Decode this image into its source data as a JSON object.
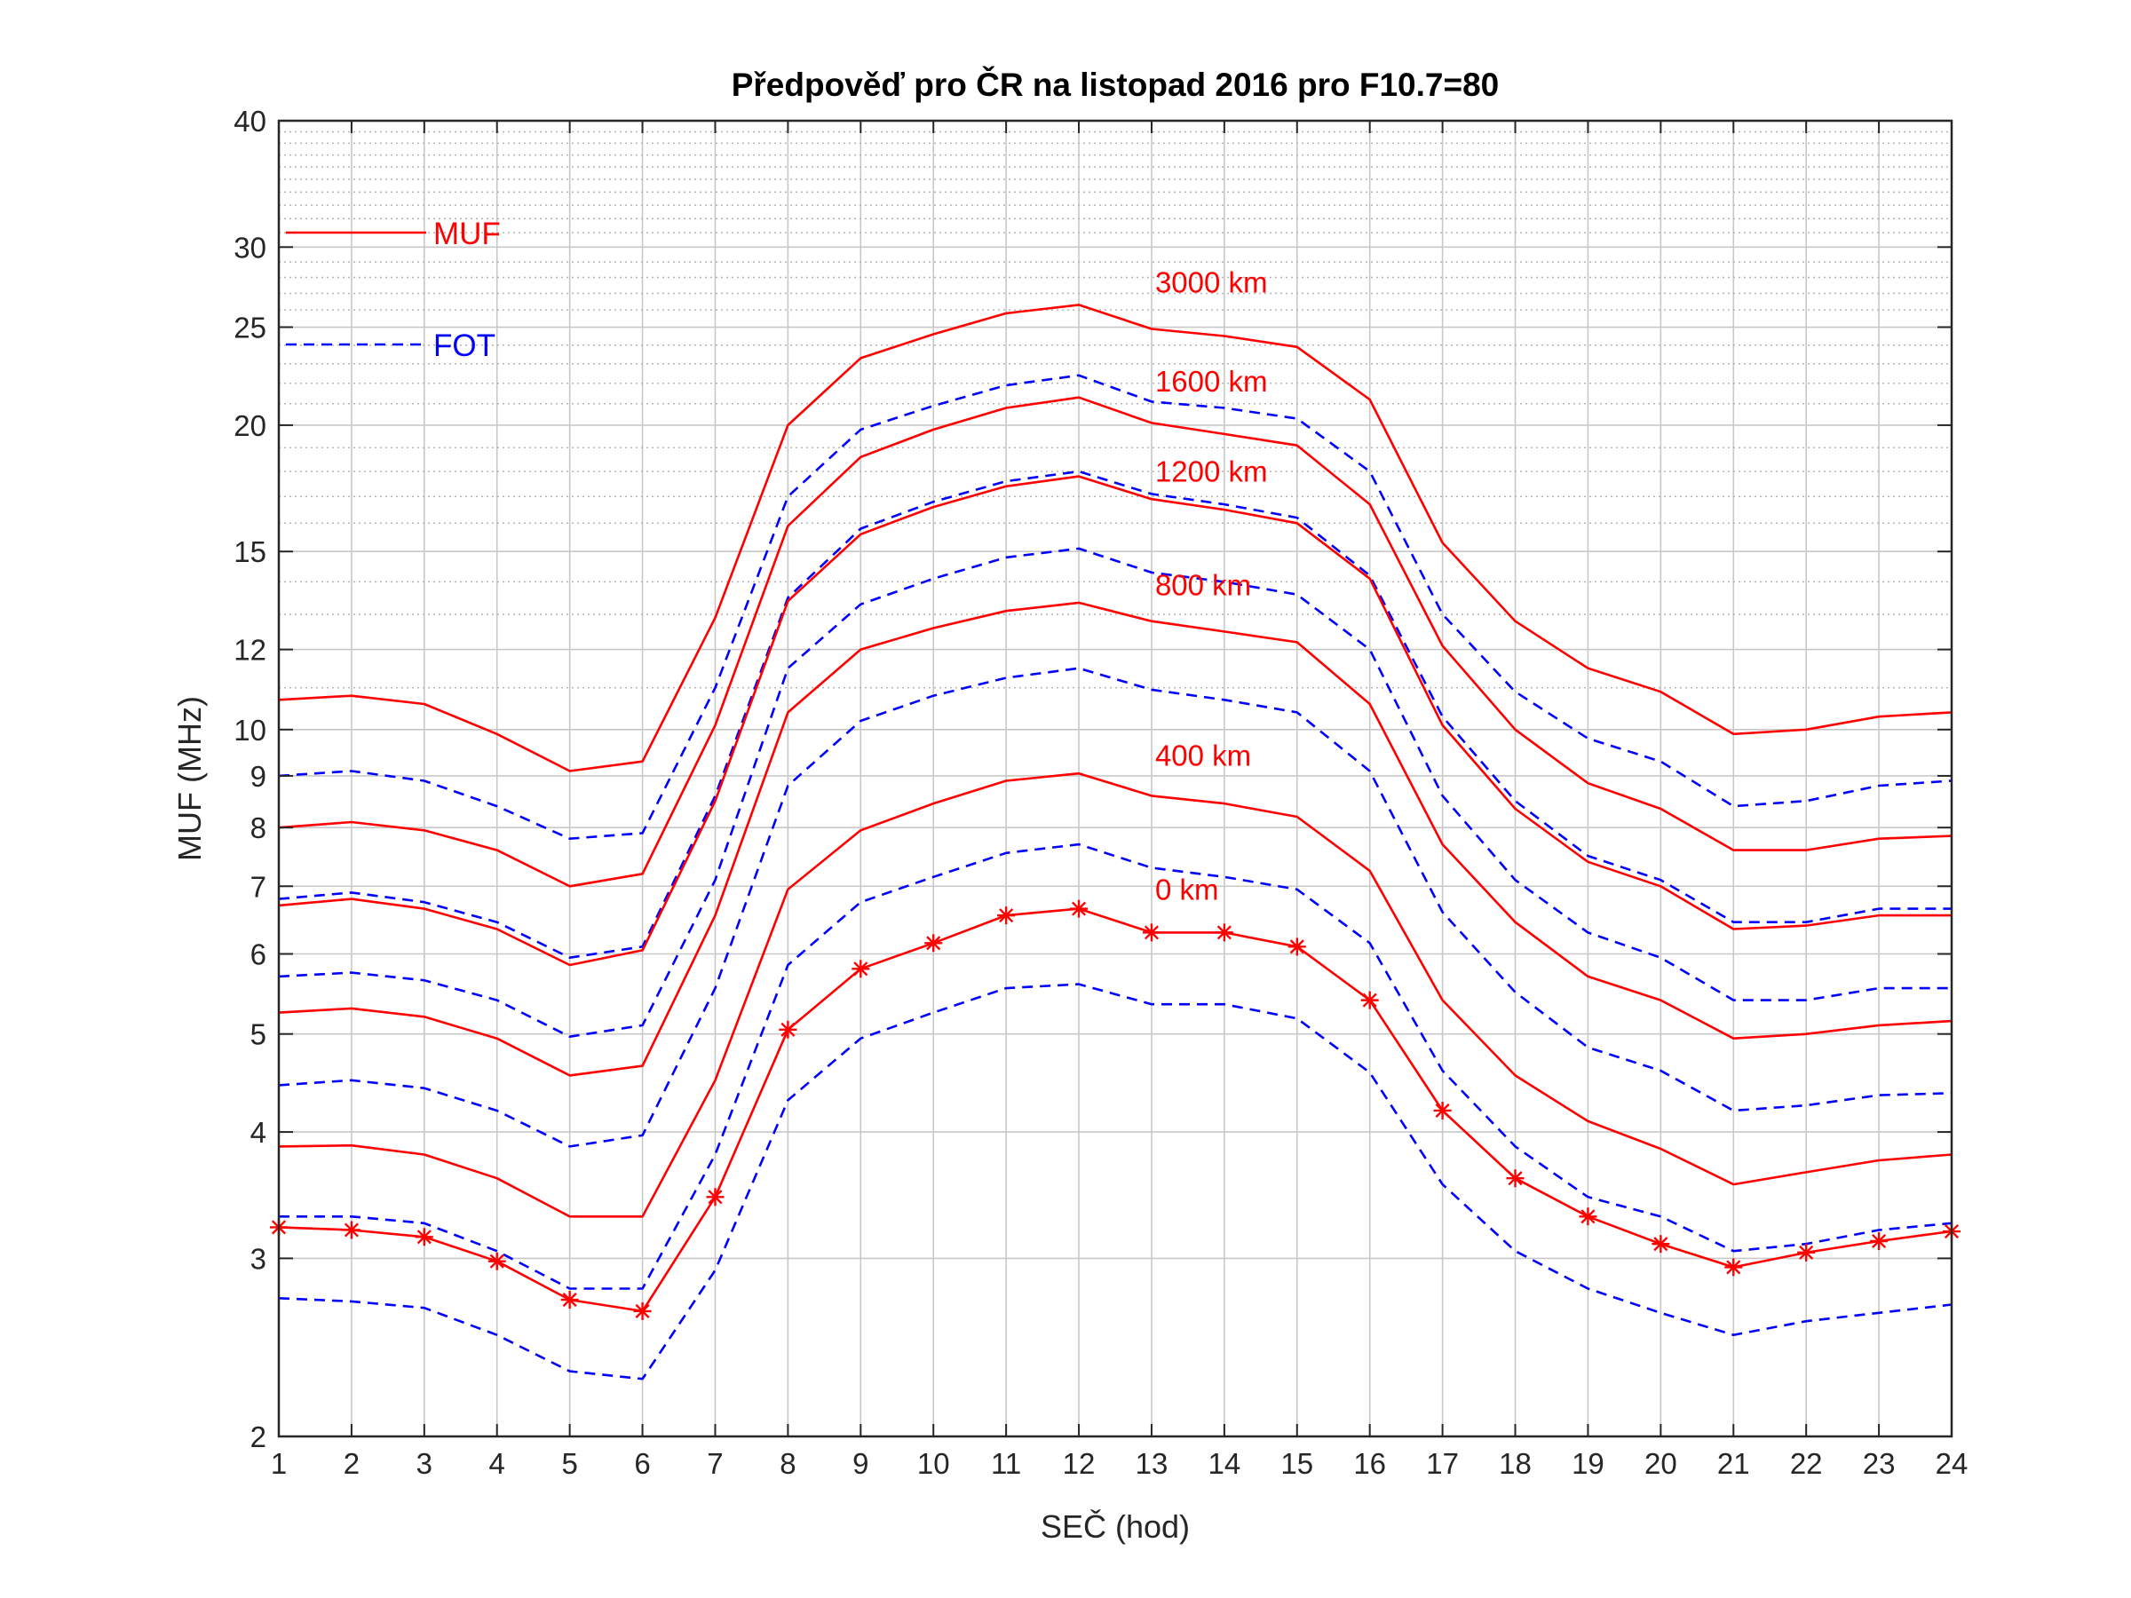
{
  "chart_data": {
    "type": "line",
    "title": "Předpověď pro ČR na listopad 2016 pro F10.7=80",
    "xlabel": "SEČ (hod)",
    "ylabel": "MUF (MHz)",
    "xlim": [
      1,
      24
    ],
    "ylim": [
      2,
      40
    ],
    "yscale": "log",
    "grid": true,
    "legend_position": "top-left",
    "x": [
      1,
      2,
      3,
      4,
      5,
      6,
      7,
      8,
      9,
      10,
      11,
      12,
      13,
      14,
      15,
      16,
      17,
      18,
      19,
      20,
      21,
      22,
      23,
      24
    ],
    "xticks": [
      "1",
      "2",
      "3",
      "4",
      "5",
      "6",
      "7",
      "8",
      "9",
      "10",
      "11",
      "12",
      "13",
      "14",
      "15",
      "16",
      "17",
      "18",
      "19",
      "20",
      "21",
      "22",
      "23",
      "24"
    ],
    "yticks": [
      {
        "value": 2,
        "label": "2"
      },
      {
        "value": 3,
        "label": "3"
      },
      {
        "value": 4,
        "label": "4"
      },
      {
        "value": 5,
        "label": "5"
      },
      {
        "value": 6,
        "label": "6"
      },
      {
        "value": 7,
        "label": "7"
      },
      {
        "value": 8,
        "label": "8"
      },
      {
        "value": 9,
        "label": "9"
      },
      {
        "value": 10,
        "label": "10"
      },
      {
        "value": 12,
        "label": "12"
      },
      {
        "value": 15,
        "label": "15"
      },
      {
        "value": 20,
        "label": "20"
      },
      {
        "value": 25,
        "label": "25"
      },
      {
        "value": 30,
        "label": "30"
      },
      {
        "value": 40,
        "label": "40"
      }
    ],
    "minor_grid": [
      11,
      13,
      14,
      16,
      17,
      18,
      19,
      21,
      22,
      23,
      24,
      26,
      27,
      28,
      29,
      31,
      32,
      33,
      34,
      35,
      36,
      37,
      38,
      39
    ],
    "legend": [
      {
        "label": "MUF",
        "color": "#ff0000",
        "dash": "solid"
      },
      {
        "label": "FOT",
        "color": "#0000ff",
        "dash": "dashed"
      }
    ],
    "colors": {
      "muf": "#ff0000",
      "fot": "#0000ff",
      "grid": "#c8c8c8",
      "axis": "#262626"
    },
    "series": [
      {
        "name": "3000 km",
        "label_x": 13,
        "label_y": 26.3,
        "kind": "MUF",
        "marker": "none",
        "values": [
          10.7,
          10.8,
          10.6,
          9.9,
          9.1,
          9.3,
          12.9,
          20.0,
          23.3,
          24.6,
          25.8,
          26.3,
          24.9,
          24.5,
          23.9,
          21.2,
          15.3,
          12.8,
          11.5,
          10.9,
          9.9,
          10.0,
          10.3,
          10.4
        ]
      },
      {
        "name": "",
        "kind": "FOT",
        "marker": "none",
        "values": [
          9.0,
          9.1,
          8.9,
          8.4,
          7.8,
          7.9,
          11.0,
          17.0,
          19.8,
          20.9,
          21.9,
          22.4,
          21.1,
          20.8,
          20.3,
          18.0,
          13.0,
          10.9,
          9.8,
          9.3,
          8.4,
          8.5,
          8.8,
          8.9
        ]
      },
      {
        "name": "1600 km",
        "label_x": 13,
        "label_y": 21.0,
        "kind": "MUF",
        "marker": "none",
        "values": [
          8.0,
          8.1,
          7.95,
          7.6,
          7.0,
          7.2,
          10.1,
          15.9,
          18.6,
          19.8,
          20.8,
          21.3,
          20.1,
          19.6,
          19.1,
          16.7,
          12.1,
          10.0,
          8.85,
          8.35,
          7.6,
          7.6,
          7.8,
          7.85
        ]
      },
      {
        "name": "",
        "kind": "FOT",
        "marker": "none",
        "values": [
          6.8,
          6.9,
          6.75,
          6.45,
          5.95,
          6.1,
          8.6,
          13.5,
          15.8,
          16.8,
          17.6,
          18.0,
          17.1,
          16.7,
          16.2,
          14.2,
          10.3,
          8.5,
          7.5,
          7.1,
          6.45,
          6.45,
          6.65,
          6.65
        ]
      },
      {
        "name": "1200 km",
        "label_x": 13,
        "label_y": 17.1,
        "kind": "MUF",
        "marker": "none",
        "values": [
          6.7,
          6.8,
          6.65,
          6.35,
          5.85,
          6.05,
          8.5,
          13.4,
          15.6,
          16.6,
          17.4,
          17.8,
          16.9,
          16.5,
          16.0,
          14.1,
          10.1,
          8.35,
          7.4,
          7.0,
          6.35,
          6.4,
          6.55,
          6.55
        ]
      },
      {
        "name": "",
        "kind": "FOT",
        "marker": "none",
        "values": [
          5.7,
          5.75,
          5.65,
          5.4,
          4.97,
          5.1,
          7.1,
          11.5,
          13.3,
          14.1,
          14.8,
          15.1,
          14.3,
          14.0,
          13.6,
          12.0,
          8.6,
          7.1,
          6.3,
          5.95,
          5.4,
          5.4,
          5.55,
          5.55
        ]
      },
      {
        "name": "800 km",
        "label_x": 13,
        "label_y": 13.2,
        "kind": "MUF",
        "marker": "none",
        "values": [
          5.25,
          5.3,
          5.2,
          4.95,
          4.55,
          4.65,
          6.55,
          10.4,
          12.0,
          12.6,
          13.1,
          13.35,
          12.8,
          12.5,
          12.2,
          10.6,
          7.7,
          6.45,
          5.7,
          5.4,
          4.95,
          5.0,
          5.1,
          5.15
        ]
      },
      {
        "name": "",
        "kind": "FOT",
        "marker": "none",
        "values": [
          4.45,
          4.5,
          4.42,
          4.2,
          3.87,
          3.97,
          5.55,
          8.8,
          10.2,
          10.8,
          11.25,
          11.5,
          10.95,
          10.7,
          10.4,
          9.1,
          6.6,
          5.5,
          4.85,
          4.6,
          4.2,
          4.25,
          4.35,
          4.37
        ]
      },
      {
        "name": "400 km",
        "label_x": 13,
        "label_y": 8.95,
        "kind": "MUF",
        "marker": "none",
        "values": [
          3.87,
          3.88,
          3.8,
          3.6,
          3.3,
          3.3,
          4.5,
          6.95,
          7.95,
          8.45,
          8.9,
          9.05,
          8.6,
          8.45,
          8.2,
          7.25,
          5.4,
          4.55,
          4.1,
          3.85,
          3.55,
          3.65,
          3.75,
          3.8
        ]
      },
      {
        "name": "",
        "kind": "FOT",
        "marker": "none",
        "values": [
          3.3,
          3.3,
          3.25,
          3.05,
          2.8,
          2.8,
          3.8,
          5.85,
          6.75,
          7.15,
          7.55,
          7.7,
          7.3,
          7.15,
          6.95,
          6.15,
          4.6,
          3.87,
          3.45,
          3.3,
          3.05,
          3.1,
          3.2,
          3.25
        ]
      },
      {
        "name": "0 km",
        "label_x": 13,
        "label_y": 6.6,
        "kind": "MUF",
        "marker": "asterisk",
        "values": [
          3.22,
          3.2,
          3.15,
          2.98,
          2.73,
          2.66,
          3.45,
          5.05,
          5.8,
          6.15,
          6.55,
          6.65,
          6.3,
          6.3,
          6.1,
          5.4,
          4.2,
          3.6,
          3.3,
          3.1,
          2.94,
          3.04,
          3.12,
          3.19
        ]
      },
      {
        "name": "",
        "kind": "FOT",
        "marker": "none",
        "values": [
          2.74,
          2.72,
          2.68,
          2.52,
          2.32,
          2.28,
          2.92,
          4.3,
          4.95,
          5.25,
          5.55,
          5.6,
          5.35,
          5.35,
          5.18,
          4.58,
          3.55,
          3.05,
          2.8,
          2.65,
          2.52,
          2.6,
          2.65,
          2.7
        ]
      }
    ]
  }
}
